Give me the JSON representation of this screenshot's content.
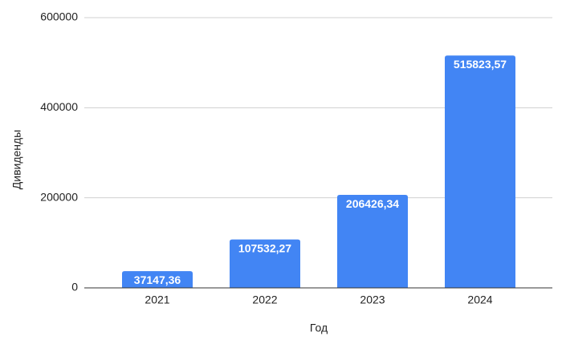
{
  "chart_data": {
    "type": "bar",
    "x_label": "Год",
    "y_label": "Дивиденды",
    "categories": [
      "2021",
      "2022",
      "2023",
      "2024"
    ],
    "values": [
      37147.36,
      107532.27,
      206426.34,
      515823.57
    ],
    "value_labels": [
      "37147,36",
      "107532,27",
      "206426,34",
      "515823,57"
    ],
    "color": "#4285f4",
    "ylim": [
      0,
      600000
    ],
    "yticks": [
      0,
      200000,
      400000,
      600000
    ],
    "grid": true
  }
}
